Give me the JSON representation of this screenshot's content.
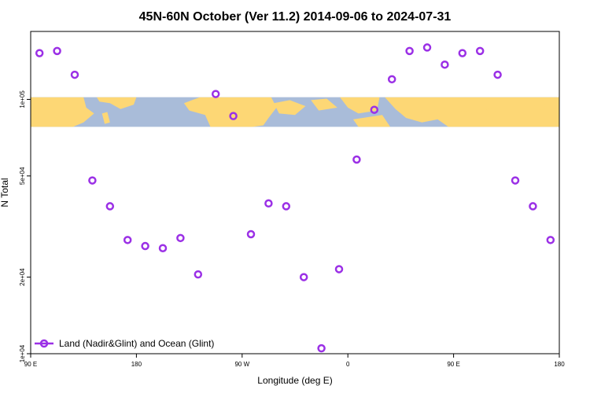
{
  "chart_data": {
    "type": "scatter",
    "title": "45N-60N October (Ver 11.2)   2014-09-06 to 2024-07-31",
    "xlabel": "Longitude (deg E)",
    "ylabel": "N Total",
    "x_ticks": [
      {
        "value": 90,
        "label": "90 E"
      },
      {
        "value": 180,
        "label": "180"
      },
      {
        "value": 270,
        "label": "90 W"
      },
      {
        "value": 360,
        "label": "0"
      },
      {
        "value": 450,
        "label": "90 E"
      },
      {
        "value": 540,
        "label": "180"
      }
    ],
    "y_ticks": [
      {
        "value": 10000,
        "label": "1e+04"
      },
      {
        "value": 20000,
        "label": "2e+04"
      },
      {
        "value": 50000,
        "label": "5e+04"
      },
      {
        "value": 100000,
        "label": "1e+05"
      }
    ],
    "xlim": [
      90,
      540
    ],
    "ylim": [
      10000,
      185000
    ],
    "y_scale": "log",
    "grid": false,
    "legend_position": "bottom-left",
    "map_strip": {
      "y_range": [
        78000,
        102000
      ],
      "ocean_color": "#a9bcd9",
      "land_color": "#fdd775"
    },
    "series": [
      {
        "name": "Land (Nadir&Glint) and Ocean (Glint)",
        "color": "#9b30e6",
        "x": [
          97.5,
          112.5,
          127.5,
          142.5,
          157.5,
          172.5,
          187.5,
          202.5,
          217.5,
          232.5,
          247.5,
          262.5,
          277.5,
          292.5,
          307.5,
          322.5,
          337.5,
          352.5,
          367.5,
          382.5,
          397.5,
          412.5,
          427.5,
          442.5,
          457.5,
          472.5,
          487.5,
          502.5,
          517.5,
          532.5
        ],
        "y": [
          152000,
          155000,
          125000,
          48000,
          38000,
          28000,
          26500,
          26000,
          28500,
          20500,
          105000,
          86000,
          29500,
          39000,
          38000,
          20000,
          10500,
          21500,
          58000,
          91000,
          120000,
          155000,
          160000,
          137000,
          152000,
          155000,
          125000,
          48000,
          38000,
          28000
        ]
      }
    ]
  }
}
